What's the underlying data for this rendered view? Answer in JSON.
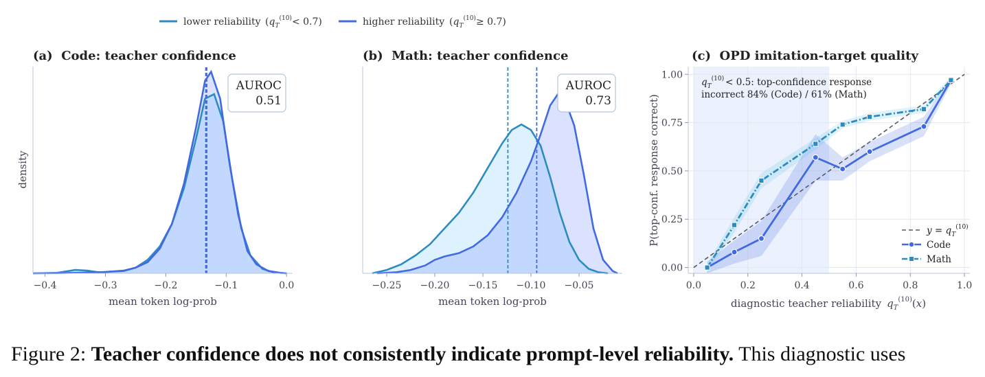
{
  "legend": {
    "lower": {
      "label": "lower reliability",
      "cond": "< 0.7",
      "color": "#2e8bc0"
    },
    "higher": {
      "label": "higher reliability",
      "cond": "≥ 0.7",
      "color": "#4169e1"
    }
  },
  "panels": {
    "a": {
      "title": "(a)  Code: teacher confidence",
      "auroc_label": "AUROC",
      "auroc_value": "0.51",
      "ylabel": "density",
      "xlabel": "mean token log-prob",
      "xticks": [
        -0.4,
        -0.3,
        -0.2,
        -0.1,
        0.0
      ],
      "xtick_labels": [
        "−0.4",
        "−0.3",
        "−0.2",
        "−0.1",
        "0.0"
      ],
      "xlim": [
        -0.42,
        0.01
      ],
      "lower_mean": -0.133,
      "higher_mean": -0.133,
      "lower_density": [
        [
          -0.42,
          0
        ],
        [
          -0.38,
          0.002
        ],
        [
          -0.35,
          0.015
        ],
        [
          -0.33,
          0.012
        ],
        [
          -0.31,
          0.004
        ],
        [
          -0.29,
          0.008
        ],
        [
          -0.27,
          0.01
        ],
        [
          -0.25,
          0.025
        ],
        [
          -0.23,
          0.06
        ],
        [
          -0.21,
          0.12
        ],
        [
          -0.19,
          0.22
        ],
        [
          -0.17,
          0.38
        ],
        [
          -0.15,
          0.6
        ],
        [
          -0.135,
          0.78
        ],
        [
          -0.12,
          0.8
        ],
        [
          -0.105,
          0.68
        ],
        [
          -0.09,
          0.42
        ],
        [
          -0.075,
          0.2
        ],
        [
          -0.06,
          0.08
        ],
        [
          -0.04,
          0.02
        ],
        [
          -0.02,
          0.003
        ],
        [
          0.0,
          0
        ]
      ],
      "higher_density": [
        [
          -0.42,
          0
        ],
        [
          -0.38,
          0.001
        ],
        [
          -0.34,
          0.003
        ],
        [
          -0.3,
          0.006
        ],
        [
          -0.27,
          0.012
        ],
        [
          -0.25,
          0.025
        ],
        [
          -0.23,
          0.05
        ],
        [
          -0.21,
          0.11
        ],
        [
          -0.19,
          0.22
        ],
        [
          -0.17,
          0.4
        ],
        [
          -0.15,
          0.65
        ],
        [
          -0.135,
          0.86
        ],
        [
          -0.125,
          0.9
        ],
        [
          -0.11,
          0.78
        ],
        [
          -0.095,
          0.5
        ],
        [
          -0.08,
          0.26
        ],
        [
          -0.065,
          0.1
        ],
        [
          -0.05,
          0.04
        ],
        [
          -0.03,
          0.01
        ],
        [
          -0.01,
          0.002
        ],
        [
          0.0,
          0
        ]
      ]
    },
    "b": {
      "title": "(b)  Math: teacher confidence",
      "auroc_label": "AUROC",
      "auroc_value": "0.73",
      "xlabel": "mean token log-prob",
      "xticks": [
        -0.25,
        -0.2,
        -0.15,
        -0.1,
        -0.05
      ],
      "xtick_labels": [
        "−0.25",
        "−0.20",
        "−0.15",
        "−0.10",
        "−0.05"
      ],
      "xlim": [
        -0.275,
        -0.005
      ],
      "lower_mean": -0.124,
      "higher_mean": -0.094,
      "lower_density": [
        [
          -0.265,
          0
        ],
        [
          -0.25,
          0.015
        ],
        [
          -0.235,
          0.04
        ],
        [
          -0.22,
          0.08
        ],
        [
          -0.205,
          0.13
        ],
        [
          -0.19,
          0.2
        ],
        [
          -0.175,
          0.27
        ],
        [
          -0.16,
          0.36
        ],
        [
          -0.145,
          0.47
        ],
        [
          -0.13,
          0.58
        ],
        [
          -0.12,
          0.64
        ],
        [
          -0.11,
          0.665
        ],
        [
          -0.1,
          0.64
        ],
        [
          -0.09,
          0.57
        ],
        [
          -0.08,
          0.43
        ],
        [
          -0.07,
          0.27
        ],
        [
          -0.06,
          0.14
        ],
        [
          -0.05,
          0.06
        ],
        [
          -0.04,
          0.02
        ],
        [
          -0.03,
          0.005
        ],
        [
          -0.02,
          0
        ]
      ],
      "higher_density": [
        [
          -0.26,
          0
        ],
        [
          -0.24,
          0.005
        ],
        [
          -0.225,
          0.015
        ],
        [
          -0.21,
          0.035
        ],
        [
          -0.2,
          0.06
        ],
        [
          -0.19,
          0.075
        ],
        [
          -0.175,
          0.09
        ],
        [
          -0.16,
          0.12
        ],
        [
          -0.145,
          0.17
        ],
        [
          -0.13,
          0.25
        ],
        [
          -0.115,
          0.36
        ],
        [
          -0.1,
          0.5
        ],
        [
          -0.09,
          0.62
        ],
        [
          -0.08,
          0.75
        ],
        [
          -0.072,
          0.8
        ],
        [
          -0.065,
          0.78
        ],
        [
          -0.055,
          0.66
        ],
        [
          -0.045,
          0.44
        ],
        [
          -0.035,
          0.2
        ],
        [
          -0.025,
          0.06
        ],
        [
          -0.015,
          0.01
        ],
        [
          -0.01,
          0
        ]
      ]
    },
    "c": {
      "title": "(c)  OPD imitation-target quality",
      "ylabel": "P(top-conf. response correct)",
      "xlabel": "diagnostic teacher reliability",
      "xticks": [
        0.0,
        0.2,
        0.4,
        0.6,
        0.8,
        1.0
      ],
      "xtick_labels": [
        "0.0",
        "0.2",
        "0.4",
        "0.6",
        "0.8",
        "1.0"
      ],
      "yticks": [
        0.0,
        0.25,
        0.5,
        0.75,
        1.0
      ],
      "ytick_labels": [
        "0.00",
        "0.25",
        "0.50",
        "0.75",
        "1.00"
      ],
      "xlim": [
        -0.02,
        1.02
      ],
      "ylim": [
        -0.03,
        1.04
      ],
      "shade_x": [
        0.0,
        0.5
      ],
      "annotation_line1": "< 0.5: top-confidence response",
      "annotation_line2": "incorrect 84% (Code) / 61% (Math)",
      "legend_identity": "y = q",
      "legend_code": "Code",
      "legend_math": "Math",
      "code": {
        "x": [
          0.05,
          0.15,
          0.25,
          0.45,
          0.55,
          0.65,
          0.85,
          0.95
        ],
        "y": [
          0.0,
          0.08,
          0.15,
          0.57,
          0.51,
          0.6,
          0.73,
          0.97
        ],
        "band": [
          0.03,
          0.06,
          0.09,
          0.12,
          0.06,
          0.05,
          0.05,
          0.02
        ],
        "color": "#4169e1"
      },
      "math": {
        "x": [
          0.05,
          0.15,
          0.25,
          0.45,
          0.55,
          0.65,
          0.85,
          0.95
        ],
        "y": [
          0.0,
          0.22,
          0.45,
          0.64,
          0.74,
          0.78,
          0.82,
          0.97
        ],
        "band": [
          0.02,
          0.04,
          0.04,
          0.03,
          0.02,
          0.02,
          0.02,
          0.02
        ],
        "color": "#2e8bc0"
      }
    }
  },
  "caption": {
    "prefix": "Figure 2: ",
    "bold": "Teacher confidence does not consistently indicate prompt-level reliability.",
    "rest": " This diagnostic uses"
  }
}
